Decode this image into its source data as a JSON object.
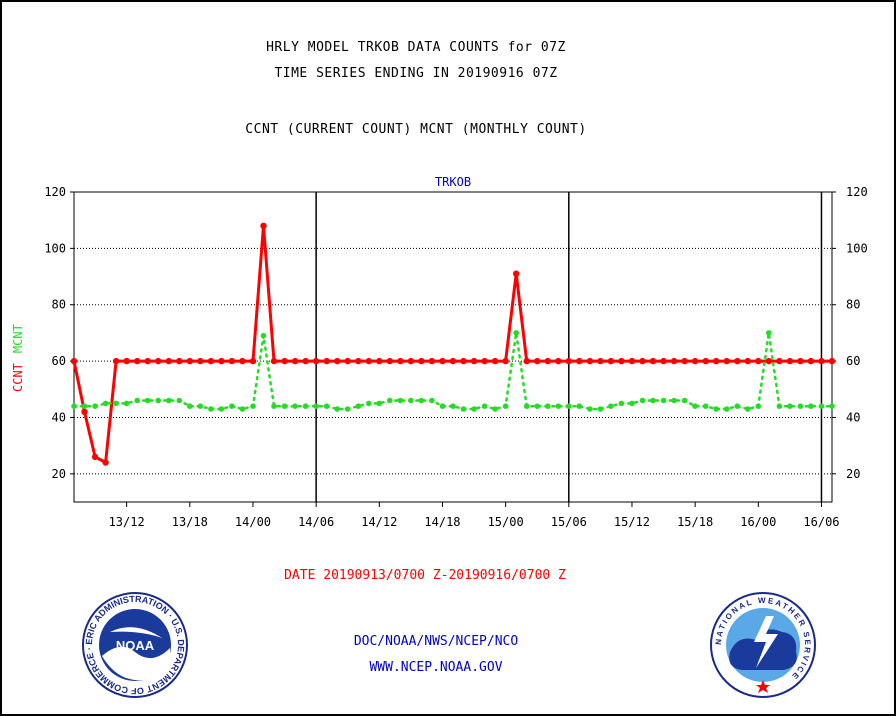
{
  "header": {
    "title_line1": "HRLY MODEL TRKOB DATA COUNTS for 07Z",
    "title_line2": "TIME SERIES ENDING IN 20190916 07Z",
    "subtitle": "CCNT (CURRENT COUNT) MCNT (MONTHLY COUNT)"
  },
  "footer": {
    "date_range": "DATE 20190913/0700 Z-20190916/0700 Z",
    "credits_line1": "DOC/NOAA/NWS/NCEP/NCO",
    "credits_line2": "WWW.NCEP.NOAA.GOV",
    "noaa_logo_text": "NOAA",
    "noaa_ring_text": "NATIONAL OCEANIC AND ATMOSPHERIC ADMINISTRATION · U.S. DEPARTMENT OF COMMERCE ·",
    "nws_ring_text": "NATIONAL WEATHER SERVICE"
  },
  "colors": {
    "ccnt": "#ff0000",
    "mcnt": "#22dd22",
    "credits": "#0000cc",
    "grid": "#000000"
  },
  "chart_data": {
    "type": "line",
    "title": "TRKOB",
    "ylabel_series": [
      "CCNT",
      "MCNT"
    ],
    "ylim": [
      10,
      120
    ],
    "yticks": [
      20,
      40,
      60,
      80,
      100,
      120
    ],
    "x_start_hour": 7,
    "x_end_hour": 79,
    "xticks": [
      {
        "hour": 12,
        "label": "13/12"
      },
      {
        "hour": 18,
        "label": "13/18"
      },
      {
        "hour": 24,
        "label": "14/00"
      },
      {
        "hour": 30,
        "label": "14/06"
      },
      {
        "hour": 36,
        "label": "14/12"
      },
      {
        "hour": 42,
        "label": "14/18"
      },
      {
        "hour": 48,
        "label": "15/00"
      },
      {
        "hour": 54,
        "label": "15/06"
      },
      {
        "hour": 60,
        "label": "15/12"
      },
      {
        "hour": 66,
        "label": "15/18"
      },
      {
        "hour": 72,
        "label": "16/00"
      },
      {
        "hour": 78,
        "label": "16/06"
      }
    ],
    "day_boundaries_hours": [
      30,
      54,
      78
    ],
    "grid": true,
    "series": [
      {
        "name": "CCNT",
        "style": "solid",
        "values": [
          60,
          42,
          26,
          24,
          60,
          60,
          60,
          60,
          60,
          60,
          60,
          60,
          60,
          60,
          60,
          60,
          60,
          60,
          108,
          60,
          60,
          60,
          60,
          60,
          60,
          60,
          60,
          60,
          60,
          60,
          60,
          60,
          60,
          60,
          60,
          60,
          60,
          60,
          60,
          60,
          60,
          60,
          91,
          60,
          60,
          60,
          60,
          60,
          60,
          60,
          60,
          60,
          60,
          60,
          60,
          60,
          60,
          60,
          60,
          60,
          60,
          60,
          60,
          60,
          60,
          60,
          60,
          60,
          60,
          60,
          60,
          60,
          60
        ]
      },
      {
        "name": "MCNT",
        "style": "dotted",
        "values": [
          44,
          44,
          44,
          45,
          45,
          45,
          46,
          46,
          46,
          46,
          46,
          44,
          44,
          43,
          43,
          44,
          43,
          44,
          69,
          44,
          44,
          44,
          44,
          44,
          44,
          43,
          43,
          44,
          45,
          45,
          46,
          46,
          46,
          46,
          46,
          44,
          44,
          43,
          43,
          44,
          43,
          44,
          70,
          44,
          44,
          44,
          44,
          44,
          44,
          43,
          43,
          44,
          45,
          45,
          46,
          46,
          46,
          46,
          46,
          44,
          44,
          43,
          43,
          44,
          43,
          44,
          70,
          44,
          44,
          44,
          44,
          44,
          44
        ]
      }
    ]
  }
}
